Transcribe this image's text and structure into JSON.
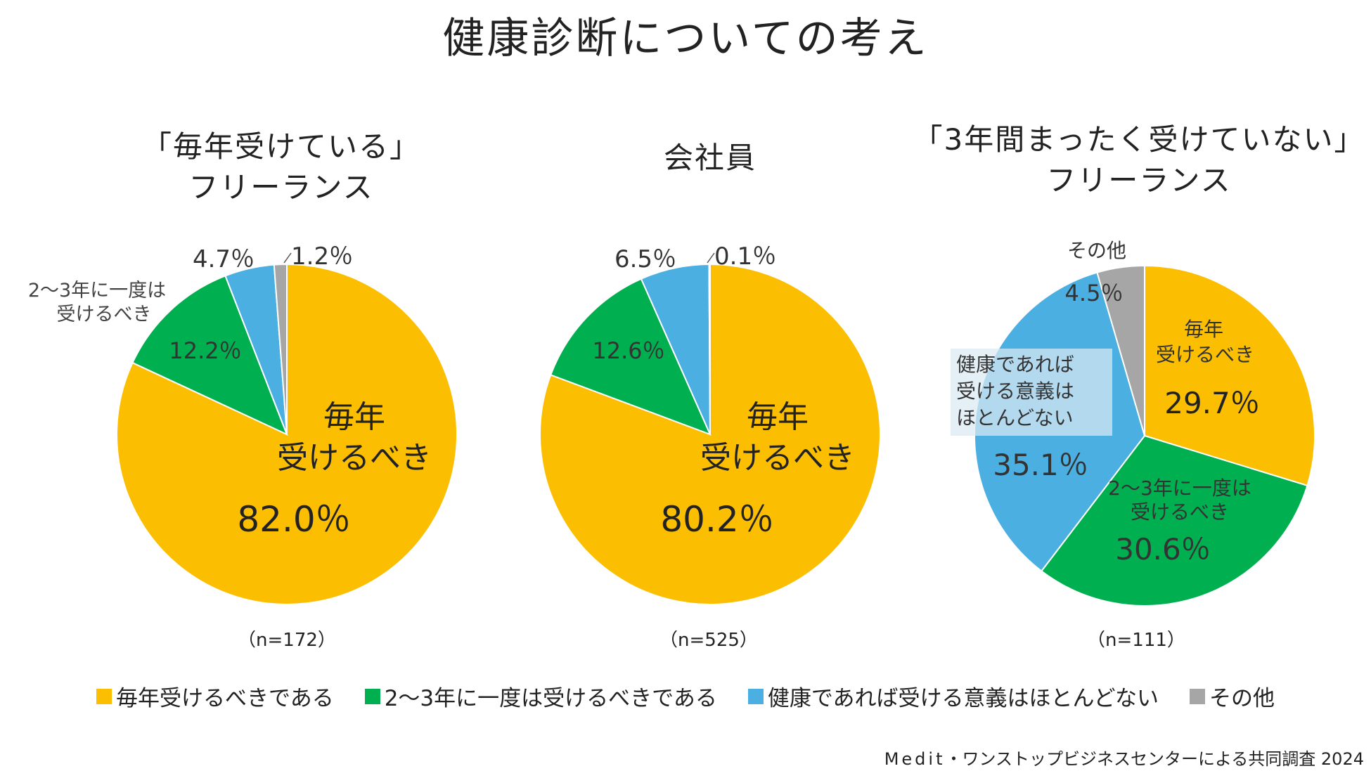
{
  "title": "健康診断についての考え",
  "colors": {
    "yellow": "#FBBE00",
    "green": "#00B050",
    "blue": "#4BAFE1",
    "gray": "#A6A6A6"
  },
  "legend": [
    {
      "label": "毎年受けるべきである",
      "color": "#FBBE00"
    },
    {
      "label": "2〜3年に一度は受けるべきである",
      "color": "#00B050"
    },
    {
      "label": "健康であれば受ける意義はほとんどない",
      "color": "#4BAFE1"
    },
    {
      "label": "その他",
      "color": "#A6A6A6"
    }
  ],
  "chart_data": [
    {
      "type": "pie",
      "title_line1": "「毎年受けている」",
      "title_line2": "フリーランス",
      "n_label": "（n=172）",
      "slices": [
        {
          "category": "毎年受けるべき",
          "value": 82.0,
          "label": "82.0％",
          "color": "#FBBE00"
        },
        {
          "category": "2〜3年に一度は受けるべき",
          "value": 12.2,
          "label": "12.2％",
          "color": "#00B050"
        },
        {
          "category": "健康であれば受ける意義はほとんどない",
          "value": 4.7,
          "label": "4.7％",
          "color": "#4BAFE1"
        },
        {
          "category": "その他",
          "value": 1.2,
          "label": "1.2％",
          "color": "#A6A6A6"
        }
      ],
      "annotations": {
        "main_line1": "毎年",
        "main_line2": "受けるべき",
        "green_line1": "2〜3年に一度は",
        "green_line2": "受けるべき"
      }
    },
    {
      "type": "pie",
      "title_line1": "会社員",
      "title_line2": "",
      "n_label": "（n=525）",
      "slices": [
        {
          "category": "毎年受けるべき",
          "value": 80.2,
          "label": "80.2％",
          "color": "#FBBE00"
        },
        {
          "category": "2〜3年に一度は受けるべき",
          "value": 12.6,
          "label": "12.6％",
          "color": "#00B050"
        },
        {
          "category": "健康であれば受ける意義はほとんどない",
          "value": 6.5,
          "label": "6.5％",
          "color": "#4BAFE1"
        },
        {
          "category": "その他",
          "value": 0.1,
          "label": "0.1％",
          "color": "#A6A6A6"
        }
      ],
      "annotations": {
        "main_line1": "毎年",
        "main_line2": "受けるべき"
      }
    },
    {
      "type": "pie",
      "title_line1": "「3年間まったく受けていない」",
      "title_line2": "フリーランス",
      "n_label": "（n=111）",
      "slices": [
        {
          "category": "毎年受けるべき",
          "value": 29.7,
          "label": "29.7％",
          "color": "#FBBE00"
        },
        {
          "category": "2〜3年に一度は受けるべき",
          "value": 30.6,
          "label": "30.6％",
          "color": "#00B050"
        },
        {
          "category": "健康であれば受ける意義はほとんどない",
          "value": 35.1,
          "label": "35.1％",
          "color": "#4BAFE1"
        },
        {
          "category": "その他",
          "value": 4.5,
          "label": "4.5％",
          "color": "#A6A6A6"
        }
      ],
      "annotations": {
        "yellow_line1": "毎年",
        "yellow_line2": "受けるべき",
        "green_line1": "2〜3年に一度は",
        "green_line2": "受けるべき",
        "blue_line1": "健康であれば",
        "blue_line2": "受ける意義は",
        "blue_line3": "ほとんどない",
        "other": "その他"
      }
    }
  ],
  "footer": {
    "brand": "Medit",
    "text": "・ワンストップビジネスセンターによる共同調査 2024"
  }
}
